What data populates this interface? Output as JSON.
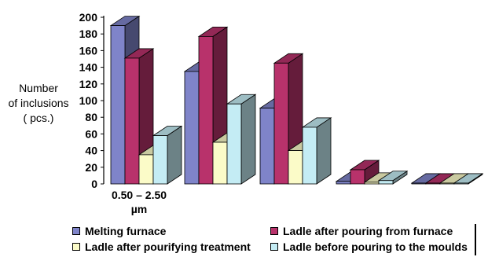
{
  "chart_data": {
    "type": "bar",
    "ylabel_lines": [
      "Number",
      "of inclusions",
      "( pcs.)"
    ],
    "ylim": [
      0,
      200
    ],
    "yticks": [
      0,
      20,
      40,
      60,
      80,
      100,
      120,
      140,
      160,
      180,
      200
    ],
    "categories": [
      "0.50 – 2.50 µm",
      "",
      "",
      "",
      ""
    ],
    "series": [
      {
        "name": "Melting furnace",
        "color": "#7f84c9",
        "values": [
          190,
          135,
          91,
          3,
          1
        ]
      },
      {
        "name": "Ladle after pouring from furnace",
        "color": "#b8326b",
        "values": [
          151,
          177,
          145,
          17,
          1
        ]
      },
      {
        "name": "Ladle after pourifying treatment",
        "color": "#fbfbc8",
        "values": [
          35,
          50,
          40,
          2,
          1
        ]
      },
      {
        "name": "Ladle before pouring to the moulds",
        "color": "#c4ecf4",
        "values": [
          58,
          96,
          68,
          4,
          1
        ]
      }
    ],
    "legend_position": "bottom",
    "grid": false
  }
}
